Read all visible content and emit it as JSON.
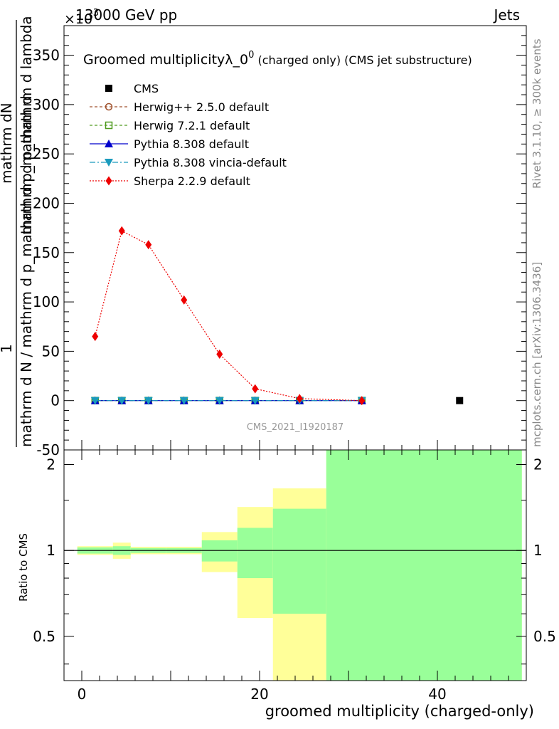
{
  "header": {
    "left": "13000 GeV pp",
    "right": "Jets",
    "exponent": "×10",
    "exponent_power": "-3"
  },
  "side_labels": {
    "rivet": "Rivet 3.1.10, ≥ 300k events",
    "mcplots": "mcplots.cern.ch [arXiv:1306.3436]"
  },
  "watermark": "CMS_2021_I1920187",
  "colors": {
    "cms": "#000000",
    "herwigpp": "#a0522d",
    "herwig7": "#4f9a1f",
    "pythia": "#0000cc",
    "vincia": "#1a9bbd",
    "sherpa": "#ee0000",
    "band_yellow": "#ffff99",
    "band_green": "#99ff99"
  },
  "chart_data": [
    {
      "type": "line",
      "title_main": "Groomed multiplicityλ_0",
      "title_sup": "0",
      "title_sub": " (charged only) (CMS jet substructure)",
      "ylabel_top": "mathrm dN",
      "ylabel_top2": "mathrm d p_mathrm d lambda",
      "ylabel_one": "1",
      "ylabel_bottom": "mathrm d N / mathrm d p_mathrm d p_mathrm d",
      "xlim": [
        -2,
        50
      ],
      "ylim": [
        -50,
        380
      ],
      "yticks": [
        -50,
        0,
        50,
        100,
        150,
        200,
        250,
        300,
        350
      ],
      "x": [
        1.5,
        4.5,
        7.5,
        11.5,
        15.5,
        19.5,
        24.5,
        31.5
      ],
      "series": [
        {
          "name": "CMS",
          "key": "cms",
          "marker": "square",
          "points": [
            [
              42.5,
              0
            ]
          ]
        },
        {
          "name": "Herwig++ 2.5.0 default",
          "key": "herwigpp",
          "marker": "circle",
          "dash": "4,3",
          "values": [
            0,
            0,
            0,
            0,
            0,
            0,
            0,
            0
          ]
        },
        {
          "name": "Herwig 7.2.1 default",
          "key": "herwig7",
          "marker": "square-open",
          "dash": "4,3",
          "values": [
            0,
            0,
            0,
            0,
            0,
            0,
            0,
            0
          ]
        },
        {
          "name": "Pythia 8.308 default",
          "key": "pythia",
          "marker": "triangle-up",
          "dash": "",
          "values": [
            0,
            0,
            0,
            0,
            0,
            0,
            0,
            0
          ]
        },
        {
          "name": "Pythia 8.308 vincia-default",
          "key": "vincia",
          "marker": "triangle-down",
          "dash": "8,3,2,3",
          "values": [
            0,
            0,
            0,
            0,
            0,
            0,
            0,
            0
          ]
        },
        {
          "name": "Sherpa 2.2.9 default",
          "key": "sherpa",
          "marker": "diamond",
          "dash": "2,2",
          "values": [
            65,
            172,
            158,
            102,
            47,
            12,
            2,
            0
          ]
        }
      ]
    },
    {
      "type": "area",
      "ylabel": "Ratio to CMS",
      "xlabel": "groomed multiplicity (charged-only)",
      "xlim": [
        -2,
        50
      ],
      "ylim": [
        0.35,
        2.25
      ],
      "yticks": [
        0.5,
        1,
        2
      ],
      "ytick_labels": [
        "0.5",
        "1",
        "2"
      ],
      "xticks": [
        0,
        20,
        40
      ],
      "reference": 1,
      "bins": [
        {
          "lo": -0.5,
          "hi": 3.5,
          "yellow": [
            0.965,
            1.035
          ],
          "green": [
            0.975,
            1.025
          ]
        },
        {
          "lo": 3.5,
          "hi": 5.5,
          "yellow": [
            0.935,
            1.065
          ],
          "green": [
            0.965,
            1.035
          ]
        },
        {
          "lo": 5.5,
          "hi": 9.5,
          "yellow": [
            0.97,
            1.03
          ],
          "green": [
            0.98,
            1.02
          ]
        },
        {
          "lo": 9.5,
          "hi": 13.5,
          "yellow": [
            0.97,
            1.03
          ],
          "green": [
            0.98,
            1.02
          ]
        },
        {
          "lo": 13.5,
          "hi": 17.5,
          "yellow": [
            0.84,
            1.16
          ],
          "green": [
            0.915,
            1.085
          ]
        },
        {
          "lo": 17.5,
          "hi": 21.5,
          "yellow": [
            0.58,
            1.42
          ],
          "green": [
            0.8,
            1.2
          ]
        },
        {
          "lo": 21.5,
          "hi": 27.5,
          "yellow": [
            0.35,
            1.65
          ],
          "green": [
            0.6,
            1.4
          ]
        },
        {
          "lo": 27.5,
          "hi": 49.5,
          "yellow": [
            0.35,
            2.25
          ],
          "green": [
            0.35,
            2.25
          ]
        }
      ]
    }
  ]
}
